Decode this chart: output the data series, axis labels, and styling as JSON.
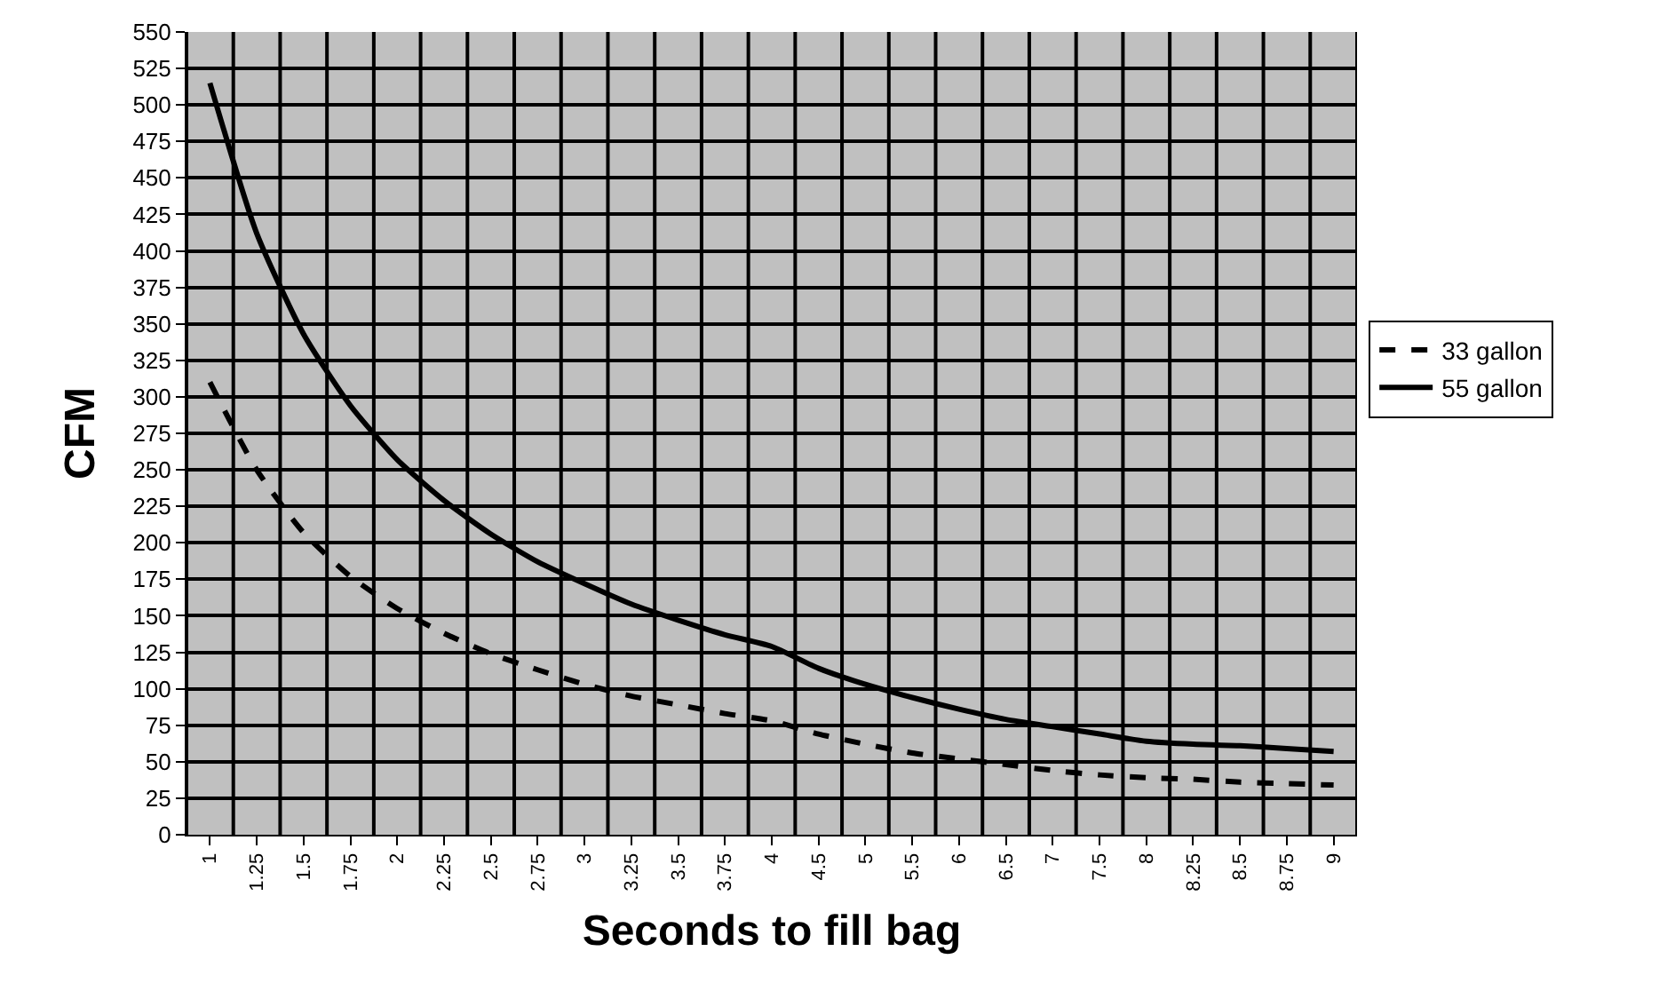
{
  "chart_data": {
    "type": "line",
    "xlabel": "Seconds to fill bag",
    "ylabel": "CFM",
    "categories": [
      "1",
      "1.25",
      "1.5",
      "1.75",
      "2",
      "2.25",
      "2.5",
      "2.75",
      "3",
      "3.25",
      "3.5",
      "3.75",
      "4",
      "4.5",
      "5",
      "5.5",
      "6",
      "6.5",
      "7",
      "7.5",
      "8",
      "8.25",
      "8.5",
      "8.75",
      "9"
    ],
    "series": [
      {
        "name": "33 gallon",
        "color": "#000000",
        "line_style": "dashed",
        "values": [
          310,
          250,
          207,
          177,
          155,
          138,
          124,
          113,
          103,
          95,
          89,
          83,
          78,
          69,
          62,
          56,
          52,
          48,
          44,
          41,
          39,
          38,
          36,
          35,
          34
        ]
      },
      {
        "name": "55 gallon",
        "color": "#000000",
        "line_style": "solid",
        "values": [
          515,
          412,
          343,
          294,
          257,
          229,
          206,
          187,
          172,
          158,
          147,
          137,
          129,
          114,
          103,
          94,
          86,
          79,
          74,
          69,
          64,
          62,
          61,
          59,
          57
        ]
      }
    ],
    "ylim": [
      0,
      550
    ],
    "yticks": [
      0,
      25,
      50,
      75,
      100,
      125,
      150,
      175,
      200,
      225,
      250,
      275,
      300,
      325,
      350,
      375,
      400,
      425,
      450,
      475,
      500,
      525,
      550
    ],
    "grid": true,
    "legend": "right",
    "marker": "none"
  }
}
